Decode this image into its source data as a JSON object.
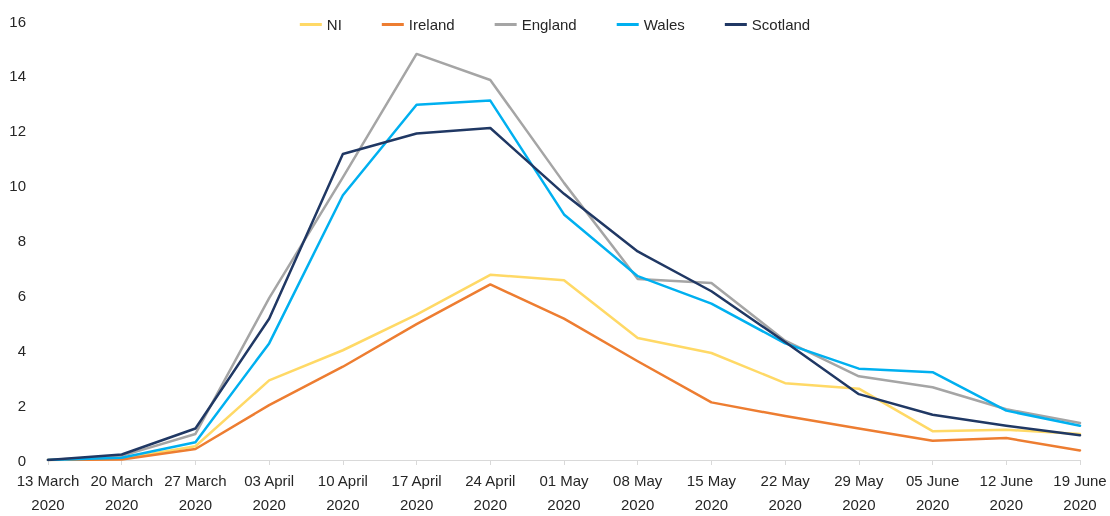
{
  "chart_data": {
    "type": "line",
    "categories": [
      "13 March 2020",
      "20 March 2020",
      "27 March 2020",
      "03 April 2020",
      "10 April 2020",
      "17 April 2020",
      "24 April 2020",
      "01 May 2020",
      "08 May 2020",
      "15 May 2020",
      "22 May 2020",
      "29 May 2020",
      "05 June 2020",
      "12 June 2020",
      "19 June 2020"
    ],
    "series": [
      {
        "name": "NI",
        "color": "#ffd966",
        "values": [
          0,
          0.05,
          0.5,
          2.9,
          4.0,
          5.3,
          6.75,
          6.55,
          4.45,
          3.9,
          2.8,
          2.6,
          1.05,
          1.1,
          0.95
        ]
      },
      {
        "name": "Ireland",
        "color": "#ed7d31",
        "values": [
          0,
          0.02,
          0.4,
          2.0,
          3.4,
          4.95,
          6.4,
          5.15,
          3.6,
          2.1,
          1.6,
          1.15,
          0.7,
          0.8,
          0.35
        ]
      },
      {
        "name": "England",
        "color": "#a5a5a5",
        "values": [
          0,
          0.15,
          0.95,
          5.9,
          10.3,
          14.8,
          13.85,
          10.1,
          6.6,
          6.45,
          4.35,
          3.05,
          2.65,
          1.85,
          1.35
        ]
      },
      {
        "name": "Wales",
        "color": "#00b0f0",
        "values": [
          0,
          0.08,
          0.65,
          4.25,
          9.65,
          12.95,
          13.1,
          8.95,
          6.7,
          5.7,
          4.25,
          3.33,
          3.2,
          1.8,
          1.25
        ]
      },
      {
        "name": "Scotland",
        "color": "#203864",
        "values": [
          0,
          0.2,
          1.15,
          5.15,
          11.15,
          11.9,
          12.1,
          9.7,
          7.6,
          6.15,
          4.3,
          2.4,
          1.65,
          1.25,
          0.9
        ]
      }
    ],
    "ylim": [
      0,
      16
    ],
    "yticks": [
      0,
      2,
      4,
      6,
      8,
      10,
      12,
      14,
      16
    ],
    "grid": false,
    "legend": "top",
    "marker": "none",
    "line_style": "solid"
  }
}
